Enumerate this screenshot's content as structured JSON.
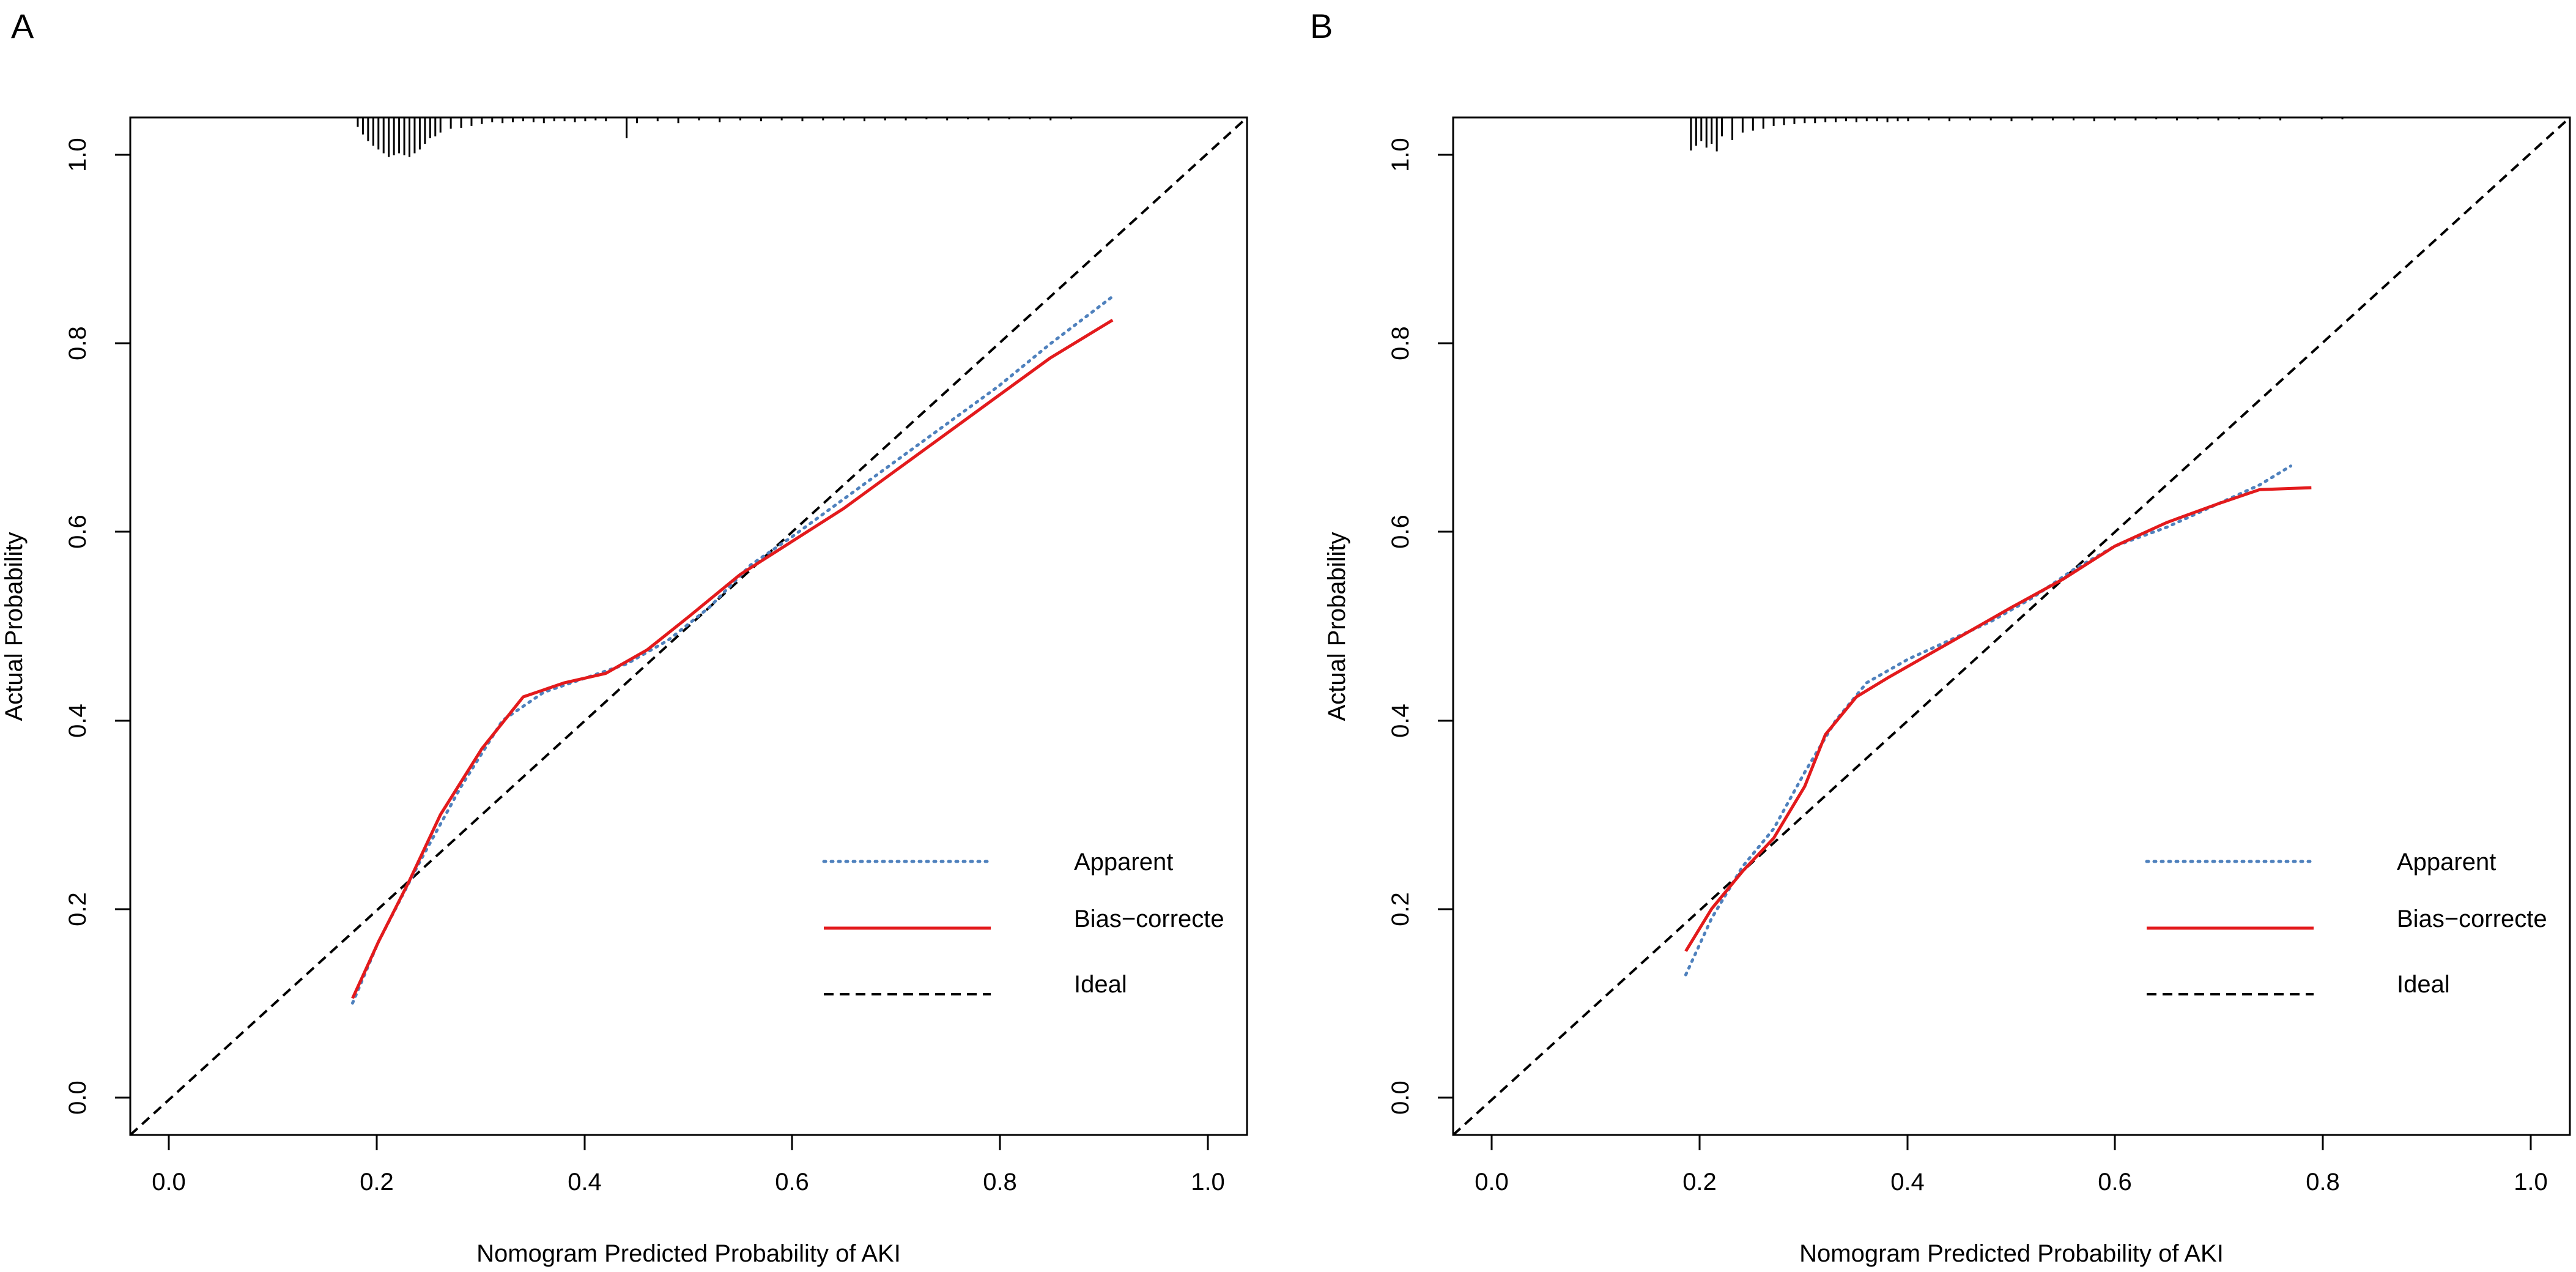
{
  "colors": {
    "apparent": "#4f81bd",
    "bias_corrected": "#e31a1c",
    "ideal": "#000000",
    "axis": "#000000"
  },
  "chart_data": [
    {
      "panel_label": "A",
      "type": "line",
      "xlabel": "Nomogram Predicted Probability of AKI",
      "ylabel": "Actual Probability",
      "xlim": [
        -0.04,
        1.04
      ],
      "ylim": [
        -0.04,
        1.04
      ],
      "x_ticks": [
        0.0,
        0.2,
        0.4,
        0.6,
        0.8,
        1.0
      ],
      "x_tick_labels": [
        "0.0",
        "0.2",
        "0.4",
        "0.6",
        "0.8",
        "1.0"
      ],
      "y_ticks": [
        0.0,
        0.2,
        0.4,
        0.6,
        0.8,
        1.0
      ],
      "y_tick_labels": [
        "0.0",
        "0.2",
        "0.4",
        "0.6",
        "0.8",
        "1.0"
      ],
      "legend": {
        "position": "bottom-right",
        "entries": [
          "Apparent",
          "Bias−correcte",
          "Ideal"
        ]
      },
      "series": [
        {
          "name": "Apparent",
          "style": "dotted",
          "points": [
            [
              0.175,
              0.1
            ],
            [
              0.2,
              0.165
            ],
            [
              0.24,
              0.25
            ],
            [
              0.28,
              0.33
            ],
            [
              0.32,
              0.4
            ],
            [
              0.36,
              0.43
            ],
            [
              0.4,
              0.445
            ],
            [
              0.44,
              0.46
            ],
            [
              0.48,
              0.485
            ],
            [
              0.52,
              0.52
            ],
            [
              0.56,
              0.565
            ],
            [
              0.6,
              0.595
            ],
            [
              0.65,
              0.635
            ],
            [
              0.7,
              0.675
            ],
            [
              0.75,
              0.715
            ],
            [
              0.8,
              0.755
            ],
            [
              0.85,
              0.8
            ],
            [
              0.91,
              0.85
            ]
          ]
        },
        {
          "name": "Bias−correcte",
          "style": "solid",
          "points": [
            [
              0.175,
              0.105
            ],
            [
              0.2,
              0.165
            ],
            [
              0.23,
              0.23
            ],
            [
              0.26,
              0.3
            ],
            [
              0.3,
              0.37
            ],
            [
              0.34,
              0.425
            ],
            [
              0.38,
              0.44
            ],
            [
              0.42,
              0.45
            ],
            [
              0.46,
              0.475
            ],
            [
              0.5,
              0.51
            ],
            [
              0.55,
              0.555
            ],
            [
              0.6,
              0.59
            ],
            [
              0.65,
              0.625
            ],
            [
              0.7,
              0.665
            ],
            [
              0.75,
              0.705
            ],
            [
              0.8,
              0.745
            ],
            [
              0.85,
              0.785
            ],
            [
              0.91,
              0.825
            ]
          ]
        },
        {
          "name": "Ideal",
          "style": "dashed",
          "points": [
            [
              -0.04,
              -0.04
            ],
            [
              1.04,
              1.04
            ]
          ]
        }
      ],
      "rug": {
        "x": [
          0.18,
          0.185,
          0.19,
          0.195,
          0.2,
          0.205,
          0.21,
          0.215,
          0.22,
          0.225,
          0.23,
          0.235,
          0.24,
          0.245,
          0.25,
          0.255,
          0.26,
          0.27,
          0.28,
          0.29,
          0.3,
          0.31,
          0.32,
          0.33,
          0.34,
          0.35,
          0.36,
          0.37,
          0.38,
          0.39,
          0.4,
          0.41,
          0.42,
          0.44,
          0.45,
          0.47,
          0.49,
          0.51,
          0.53,
          0.55,
          0.57,
          0.59,
          0.61,
          0.63,
          0.65,
          0.67,
          0.69,
          0.71,
          0.73,
          0.75,
          0.77,
          0.79,
          0.81,
          0.83,
          0.85,
          0.87
        ],
        "h": [
          0.01,
          0.018,
          0.025,
          0.03,
          0.034,
          0.038,
          0.042,
          0.04,
          0.038,
          0.04,
          0.042,
          0.038,
          0.034,
          0.028,
          0.022,
          0.02,
          0.016,
          0.012,
          0.011,
          0.009,
          0.007,
          0.005,
          0.006,
          0.005,
          0.004,
          0.005,
          0.006,
          0.004,
          0.004,
          0.005,
          0.004,
          0.003,
          0.004,
          0.022,
          0.006,
          0.004,
          0.006,
          0.003,
          0.005,
          0.003,
          0.004,
          0.003,
          0.004,
          0.003,
          0.003,
          0.004,
          0.003,
          0.003,
          0.002,
          0.003,
          0.002,
          0.003,
          0.002,
          0.002,
          0.003,
          0.002
        ]
      }
    },
    {
      "panel_label": "B",
      "type": "line",
      "xlabel": "Nomogram Predicted Probability of AKI",
      "ylabel": "Actual Probability",
      "xlim": [
        -0.04,
        1.04
      ],
      "ylim": [
        -0.04,
        1.04
      ],
      "x_ticks": [
        0.0,
        0.2,
        0.4,
        0.6,
        0.8,
        1.0
      ],
      "x_tick_labels": [
        "0.0",
        "0.2",
        "0.4",
        "0.6",
        "0.8",
        "1.0"
      ],
      "y_ticks": [
        0.0,
        0.2,
        0.4,
        0.6,
        0.8,
        1.0
      ],
      "y_tick_labels": [
        "0.0",
        "0.2",
        "0.4",
        "0.6",
        "0.8",
        "1.0"
      ],
      "legend": {
        "position": "bottom-right",
        "entries": [
          "Apparent",
          "Bias−correcte",
          "Ideal"
        ]
      },
      "series": [
        {
          "name": "Apparent",
          "style": "dotted",
          "points": [
            [
              0.185,
              0.13
            ],
            [
              0.21,
              0.19
            ],
            [
              0.24,
              0.245
            ],
            [
              0.27,
              0.285
            ],
            [
              0.3,
              0.345
            ],
            [
              0.33,
              0.4
            ],
            [
              0.36,
              0.44
            ],
            [
              0.4,
              0.465
            ],
            [
              0.44,
              0.485
            ],
            [
              0.48,
              0.505
            ],
            [
              0.52,
              0.53
            ],
            [
              0.56,
              0.56
            ],
            [
              0.6,
              0.585
            ],
            [
              0.65,
              0.605
            ],
            [
              0.7,
              0.63
            ],
            [
              0.74,
              0.65
            ],
            [
              0.77,
              0.67
            ]
          ]
        },
        {
          "name": "Bias−correcte",
          "style": "solid",
          "points": [
            [
              0.185,
              0.155
            ],
            [
              0.21,
              0.2
            ],
            [
              0.24,
              0.24
            ],
            [
              0.27,
              0.275
            ],
            [
              0.3,
              0.33
            ],
            [
              0.32,
              0.385
            ],
            [
              0.35,
              0.425
            ],
            [
              0.38,
              0.445
            ],
            [
              0.42,
              0.47
            ],
            [
              0.46,
              0.495
            ],
            [
              0.5,
              0.52
            ],
            [
              0.55,
              0.55
            ],
            [
              0.6,
              0.585
            ],
            [
              0.65,
              0.61
            ],
            [
              0.7,
              0.63
            ],
            [
              0.74,
              0.645
            ],
            [
              0.79,
              0.647
            ]
          ]
        },
        {
          "name": "Ideal",
          "style": "dashed",
          "points": [
            [
              -0.04,
              -0.04
            ],
            [
              1.04,
              1.04
            ]
          ]
        }
      ],
      "rug": {
        "x": [
          0.19,
          0.195,
          0.2,
          0.205,
          0.21,
          0.215,
          0.22,
          0.23,
          0.24,
          0.25,
          0.26,
          0.27,
          0.28,
          0.29,
          0.3,
          0.31,
          0.32,
          0.33,
          0.34,
          0.35,
          0.36,
          0.37,
          0.38,
          0.39,
          0.4,
          0.42,
          0.44,
          0.46,
          0.48,
          0.5,
          0.52,
          0.54,
          0.56,
          0.58,
          0.6,
          0.62,
          0.64,
          0.66,
          0.68,
          0.7,
          0.72,
          0.74,
          0.76,
          0.8,
          0.82
        ],
        "h": [
          0.035,
          0.03,
          0.025,
          0.032,
          0.028,
          0.036,
          0.02,
          0.024,
          0.016,
          0.014,
          0.012,
          0.009,
          0.008,
          0.007,
          0.006,
          0.006,
          0.005,
          0.005,
          0.004,
          0.005,
          0.004,
          0.004,
          0.005,
          0.004,
          0.004,
          0.003,
          0.004,
          0.003,
          0.003,
          0.004,
          0.003,
          0.003,
          0.003,
          0.004,
          0.003,
          0.003,
          0.002,
          0.003,
          0.002,
          0.003,
          0.002,
          0.002,
          0.003,
          0.002,
          0.002
        ]
      }
    }
  ]
}
